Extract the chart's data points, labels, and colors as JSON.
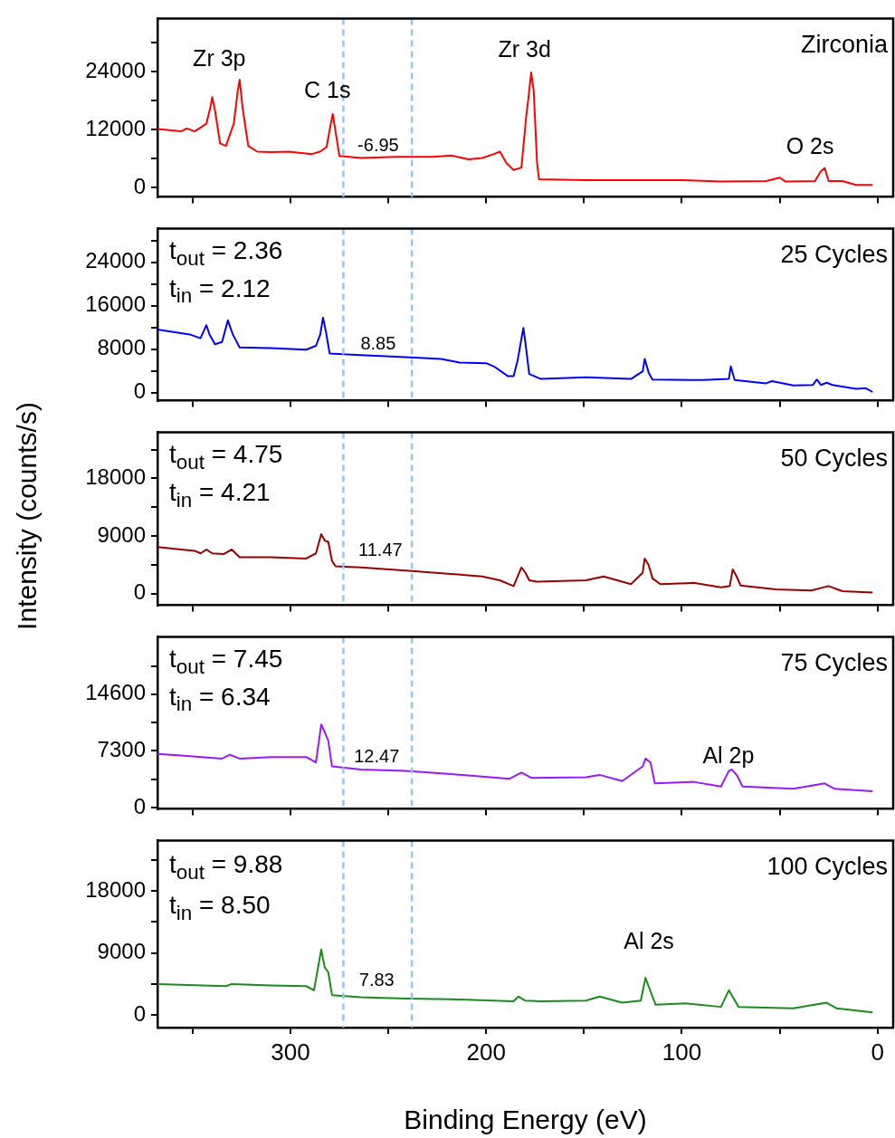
{
  "chart_data": [
    {
      "type": "line",
      "title": "Zirconia",
      "xlim": [
        368,
        -8
      ],
      "xticks": [
        {
          "value": 350,
          "label": null
        },
        300,
        {
          "value": 250,
          "label": null
        },
        200,
        {
          "value": 150,
          "label": null
        },
        100,
        {
          "value": 50,
          "label": null
        },
        0
      ],
      "ylim": [
        -2000,
        35000
      ],
      "yticks": [
        0,
        {
          "value": 6000,
          "label": null
        },
        12000,
        {
          "value": 18000,
          "label": null
        },
        24000,
        {
          "value": 30000,
          "label": null
        }
      ],
      "tick_labels": "y",
      "series": [
        {
          "color": "#ff0000",
          "x": [
            368,
            356,
            353,
            349,
            343,
            341,
            340,
            338.5,
            336,
            333,
            329,
            327,
            326,
            324.5,
            321.6,
            317,
            310,
            301,
            289,
            285,
            281.6,
            279.8,
            278.4,
            277,
            275,
            264,
            246,
            227,
            218,
            209,
            202,
            196,
            193,
            189.6,
            186,
            182,
            179.5,
            178.5,
            177,
            175.7,
            174,
            173,
            149,
            126,
            100,
            80,
            57,
            50,
            47,
            32,
            29,
            27,
            25,
            18,
            11,
            2.5
          ],
          "values": [
            12100,
            11600,
            12200,
            11600,
            13200,
            16500,
            18700,
            15700,
            9100,
            8600,
            13200,
            19900,
            22300,
            16500,
            8600,
            7400,
            7300,
            7400,
            6900,
            7400,
            8300,
            12400,
            15200,
            11600,
            6500,
            6100,
            6300,
            6300,
            6600,
            5800,
            6100,
            6900,
            7400,
            5000,
            3600,
            4100,
            14900,
            18200,
            23800,
            19900,
            5000,
            1700,
            1500,
            1500,
            1500,
            1200,
            1300,
            2000,
            1200,
            1300,
            3300,
            4000,
            1300,
            1300,
            500,
            500
          ]
        }
      ],
      "ref_lines": [
        {
          "axis": "x",
          "value": 273,
          "color": "#9dc3e6",
          "line_style": "dashed"
        },
        {
          "axis": "x",
          "value": 238,
          "color": "#9dc3e6",
          "line_style": "dashed"
        }
      ],
      "annotations": [
        "Zr 3p",
        "C 1s",
        "Zr 3d",
        "O 2s",
        "-6.95"
      ]
    },
    {
      "type": "line",
      "title": "25 Cycles",
      "xlim": [
        368,
        -8
      ],
      "xticks": [
        {
          "value": 350,
          "label": null
        },
        300,
        {
          "value": 250,
          "label": null
        },
        200,
        {
          "value": 150,
          "label": null
        },
        100,
        {
          "value": 50,
          "label": null
        },
        0
      ],
      "ylim": [
        -1500,
        30200
      ],
      "yticks": [
        0,
        {
          "value": 4000,
          "label": null
        },
        8000,
        {
          "value": 12000,
          "label": null
        },
        16000,
        {
          "value": 20000,
          "label": null
        },
        24000,
        {
          "value": 28000,
          "label": null
        }
      ],
      "tick_labels": "y",
      "series": [
        {
          "color": "#0000ff",
          "x": [
            368,
            351.5,
            346,
            343,
            341.4,
            338.6,
            335,
            332,
            329.5,
            326,
            310,
            292,
            287,
            284.8,
            283.4,
            282,
            280,
            264,
            241,
            223,
            213.5,
            200,
            196,
            188.8,
            186,
            184,
            181,
            180,
            178,
            172,
            149,
            126,
            120,
            119,
            117,
            115,
            89.5,
            76,
            75,
            73,
            57,
            54,
            43,
            33,
            31,
            29,
            26,
            23,
            11,
            6,
            2.5
          ],
          "values": [
            11600,
            10700,
            10000,
            12400,
            10700,
            8900,
            9300,
            13300,
            10700,
            8300,
            8200,
            7900,
            8600,
            10700,
            13800,
            11400,
            7200,
            6900,
            6500,
            6200,
            5500,
            5400,
            4800,
            3000,
            3000,
            5800,
            11900,
            9300,
            3400,
            2500,
            2800,
            2500,
            3900,
            6200,
            3700,
            2400,
            2300,
            2500,
            4800,
            2300,
            1700,
            2100,
            1300,
            1400,
            2400,
            1400,
            1800,
            1400,
            700,
            800,
            100
          ]
        }
      ],
      "ref_lines": [
        {
          "axis": "x",
          "value": 273,
          "color": "#9dc3e6",
          "line_style": "dashed"
        },
        {
          "axis": "x",
          "value": 238,
          "color": "#9dc3e6",
          "line_style": "dashed"
        }
      ],
      "annotations": [
        "t$_{out}$ = 2.36",
        "t$_{in}$ = 2.12",
        "8.85"
      ]
    },
    {
      "type": "line",
      "title": "50 Cycles",
      "ylabel": "Intensity (counts/s)",
      "xlim": [
        368,
        -8
      ],
      "xticks": [
        {
          "value": 350,
          "label": null
        },
        300,
        {
          "value": 250,
          "label": null
        },
        200,
        {
          "value": 150,
          "label": null
        },
        100,
        {
          "value": 50,
          "label": null
        },
        0
      ],
      "ylim": [
        -1800,
        25200
      ],
      "yticks": [
        0,
        {
          "value": 4500,
          "label": null
        },
        9000,
        {
          "value": 13500,
          "label": null
        },
        18000,
        {
          "value": 22500,
          "label": null
        }
      ],
      "tick_labels": "y",
      "series": [
        {
          "color": "#990000",
          "x": [
            368,
            349,
            346,
            343,
            340,
            334,
            330,
            326,
            310,
            292,
            287,
            284.3,
            282.5,
            280.7,
            278.8,
            277,
            264,
            241,
            218,
            202,
            193,
            186,
            182,
            180,
            178,
            174,
            149,
            140,
            126,
            120,
            119,
            117,
            115,
            111,
            94,
            80,
            75.5,
            74,
            72,
            70,
            52,
            34,
            25,
            18,
            2.5
          ],
          "values": [
            7300,
            6700,
            6300,
            6900,
            6300,
            6200,
            6900,
            5700,
            5700,
            5500,
            6300,
            9300,
            8300,
            8100,
            5100,
            4300,
            4100,
            3600,
            3100,
            2700,
            2100,
            1200,
            4100,
            3300,
            2100,
            1900,
            2100,
            2700,
            1500,
            3300,
            5500,
            4500,
            2400,
            1500,
            1700,
            1000,
            1200,
            3800,
            2700,
            1300,
            700,
            500,
            1200,
            400,
            200
          ]
        }
      ],
      "ref_lines": [
        {
          "axis": "x",
          "value": 273,
          "color": "#9dc3e6",
          "line_style": "dashed"
        },
        {
          "axis": "x",
          "value": 238,
          "color": "#9dc3e6",
          "line_style": "dashed"
        }
      ],
      "annotations": [
        "t$_{out}$ = 4.75",
        "t$_{in}$ = 4.21",
        "11.47"
      ]
    },
    {
      "type": "line",
      "title": "75 Cycles",
      "xlim": [
        368,
        -8
      ],
      "xticks": [
        {
          "value": 350,
          "label": null
        },
        300,
        {
          "value": 250,
          "label": null
        },
        200,
        {
          "value": 150,
          "label": null
        },
        100,
        {
          "value": 50,
          "label": null
        },
        0
      ],
      "ylim": [
        -200,
        22000
      ],
      "yticks": [
        0,
        {
          "value": 3650,
          "label": null
        },
        7300,
        {
          "value": 10950,
          "label": null
        },
        14600,
        {
          "value": 18250,
          "label": null
        }
      ],
      "tick_labels": "y",
      "series": [
        {
          "color": "#9b19f5",
          "x": [
            368,
            356,
            335,
            331,
            326,
            310,
            292,
            287,
            284.3,
            282.5,
            280.7,
            278.8,
            264,
            241,
            218,
            188,
            182,
            176.7,
            149,
            142,
            130.5,
            120,
            118.6,
            116,
            113.8,
            94,
            80,
            76,
            74.5,
            71.7,
            69,
            43,
            27,
            22,
            2.5
          ],
          "values": [
            6900,
            6700,
            6300,
            6800,
            6300,
            6500,
            6500,
            5800,
            10700,
            9700,
            8600,
            5300,
            4900,
            4700,
            4300,
            3700,
            4500,
            3800,
            3900,
            4200,
            3400,
            5300,
            6300,
            5800,
            3100,
            3300,
            2700,
            4700,
            4900,
            4100,
            2700,
            2400,
            3100,
            2400,
            2100
          ]
        }
      ],
      "ref_lines": [
        {
          "axis": "x",
          "value": 273,
          "color": "#9dc3e6",
          "line_style": "dashed"
        },
        {
          "axis": "x",
          "value": 238,
          "color": "#9dc3e6",
          "line_style": "dashed"
        }
      ],
      "annotations": [
        "t$_{out}$ = 7.45",
        "t$_{in}$ = 6.34",
        "12.47",
        "Al 2p"
      ]
    },
    {
      "type": "line",
      "title": "100 Cycles",
      "xlabel": "Binding Energy (eV)",
      "xlim": [
        368,
        -8
      ],
      "xticks": [
        {
          "value": 350,
          "label": null
        },
        300,
        {
          "value": 250,
          "label": null
        },
        200,
        {
          "value": 150,
          "label": null
        },
        100,
        {
          "value": 50,
          "label": null
        },
        0
      ],
      "ylim": [
        -1800,
        25300
      ],
      "yticks": [
        0,
        {
          "value": 4500,
          "label": null
        },
        9000,
        {
          "value": 13500,
          "label": null
        },
        18000,
        {
          "value": 22500,
          "label": null
        }
      ],
      "series": [
        {
          "color": "#1a8c1a",
          "x": [
            368,
            333,
            330,
            310,
            292,
            288,
            284.3,
            282.5,
            280.7,
            278.8,
            264,
            241,
            218,
            186,
            183.6,
            180,
            172,
            149,
            142,
            130.5,
            121,
            118.6,
            117,
            113.4,
            98,
            80,
            76,
            73.5,
            71,
            43,
            26,
            21,
            2.5
          ],
          "values": [
            4500,
            4200,
            4500,
            4300,
            4200,
            3600,
            9500,
            6900,
            6200,
            2900,
            2600,
            2400,
            2300,
            2000,
            2700,
            2100,
            2000,
            2100,
            2700,
            1800,
            2100,
            5400,
            4200,
            1500,
            1700,
            1200,
            3600,
            2400,
            1200,
            1000,
            1800,
            1000,
            400
          ]
        }
      ],
      "ref_lines": [
        {
          "axis": "x",
          "value": 273,
          "color": "#9dc3e6",
          "line_style": "dashed"
        },
        {
          "axis": "x",
          "value": 238,
          "color": "#9dc3e6",
          "line_style": "dashed"
        }
      ],
      "annotations": [
        "t$_{out}$ = 9.88",
        "t$_{in}$ = 8.50",
        "7.83",
        "Al 2s"
      ]
    }
  ]
}
